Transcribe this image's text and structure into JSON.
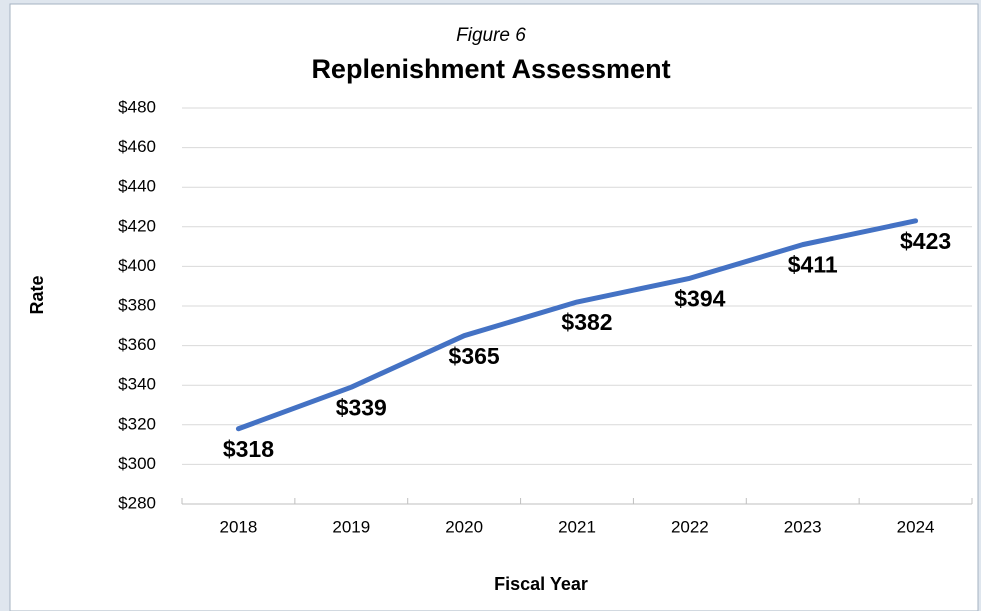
{
  "chart_data": {
    "type": "line",
    "subtitle": "Figure 6",
    "title": "Replenishment Assessment",
    "y_label": "Rate",
    "x_label": "Fiscal Year",
    "categories": [
      "2018",
      "2019",
      "2020",
      "2021",
      "2022",
      "2023",
      "2024"
    ],
    "series": [
      {
        "name": "Rate",
        "color": "#4472c4",
        "values": [
          318,
          339,
          365,
          382,
          394,
          411,
          423
        ],
        "value_labels": [
          "$318",
          "$339",
          "$365",
          "$382",
          "$394",
          "$411",
          "$423"
        ]
      }
    ],
    "ylim": [
      280,
      480
    ],
    "yticks": [
      {
        "value": 280,
        "label": "$280"
      },
      {
        "value": 300,
        "label": "$300"
      },
      {
        "value": 320,
        "label": "$320"
      },
      {
        "value": 340,
        "label": "$340"
      },
      {
        "value": 360,
        "label": "$360"
      },
      {
        "value": 380,
        "label": "$380"
      },
      {
        "value": 400,
        "label": "$400"
      },
      {
        "value": 420,
        "label": "$420"
      },
      {
        "value": 440,
        "label": "$440"
      },
      {
        "value": 460,
        "label": "$460"
      },
      {
        "value": 480,
        "label": "$480"
      }
    ],
    "grid": true
  }
}
